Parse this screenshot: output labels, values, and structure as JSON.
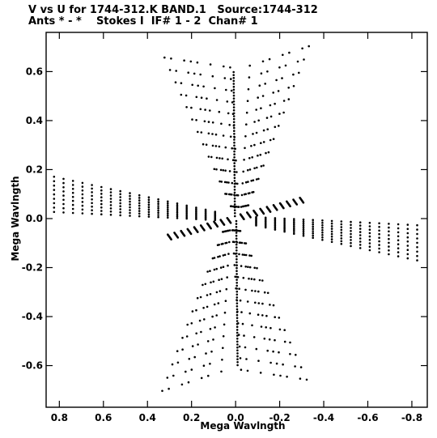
{
  "title_line1": "V vs U for 1744-312.K BAND.1   Source:1744-312",
  "title_line2": "Ants * - *    Stokes I  IF# 1 - 2  Chan# 1",
  "chart_data": {
    "type": "scatter",
    "title": "V vs U for 1744-312.K BAND.1   Source:1744-312",
    "subtitle": "Ants * - *    Stokes I  IF# 1 - 2  Chan# 1",
    "xlabel": "Mega Wavlngth",
    "ylabel": "Mega Wavlngth",
    "xlim": [
      0.86,
      -0.87
    ],
    "ylim": [
      -0.77,
      0.76
    ],
    "x_reversed": true,
    "xticks": [
      0.8,
      0.6,
      0.4,
      0.2,
      0.0,
      -0.2,
      -0.4,
      -0.6,
      -0.8
    ],
    "xtick_labels": [
      "0.8",
      "0.6",
      "0.4",
      "0.2",
      "0.0",
      "-0.2",
      "-0.4",
      "-0.6",
      "-0.8"
    ],
    "yticks": [
      0.6,
      0.4,
      0.2,
      0.0,
      -0.2,
      -0.4,
      -0.6
    ],
    "ytick_labels": [
      "0.6",
      "0.4",
      "0.2",
      "0.0",
      "-0.2",
      "-0.4",
      "-0.6"
    ],
    "marker_color": "#000000",
    "uv_tracks": {
      "description_note": "",
      "arms": [
        {
          "name": "",
          "start": [
            0.0,
            0.0
          ],
          "end": [
            0.0,
            0.6
          ],
          "bow": 0.06,
          "tracks": 12
        },
        {
          "name": "",
          "start": [
            0.0,
            0.0
          ],
          "end": [
            -0.45,
            0.62
          ],
          "bow": 0.0,
          "tracks": 0
        },
        {
          "name": "",
          "start": [
            0.0,
            0.0
          ],
          "end": [
            0.8,
            0.12
          ],
          "bow": 0.0,
          "tracks": 0
        }
      ]
    },
    "points": []
  }
}
